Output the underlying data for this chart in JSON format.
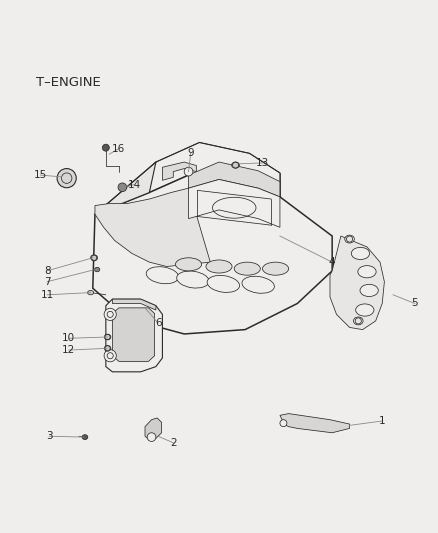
{
  "title": "T–ENGINE",
  "bg_color": "#f0eeec",
  "line_color": "#2a2a2a",
  "label_color": "#2a2a2a",
  "leader_color": "#888888",
  "fig_width": 4.38,
  "fig_height": 5.33,
  "dpi": 100,
  "labels_data": [
    [
      1,
      0.875,
      0.145,
      0.8,
      0.135
    ],
    [
      2,
      0.395,
      0.095,
      0.36,
      0.11
    ],
    [
      3,
      0.11,
      0.11,
      0.19,
      0.108
    ],
    [
      4,
      0.76,
      0.51,
      0.64,
      0.57
    ],
    [
      5,
      0.95,
      0.415,
      0.9,
      0.435
    ],
    [
      6,
      0.36,
      0.37,
      0.33,
      0.405
    ],
    [
      7,
      0.105,
      0.465,
      0.215,
      0.493
    ],
    [
      8,
      0.105,
      0.49,
      0.21,
      0.52
    ],
    [
      9,
      0.435,
      0.76,
      0.43,
      0.718
    ],
    [
      10,
      0.155,
      0.335,
      0.243,
      0.338
    ],
    [
      11,
      0.105,
      0.435,
      0.205,
      0.44
    ],
    [
      12,
      0.155,
      0.308,
      0.243,
      0.312
    ],
    [
      13,
      0.6,
      0.738,
      0.548,
      0.736
    ],
    [
      14,
      0.305,
      0.688,
      0.28,
      0.682
    ],
    [
      15,
      0.09,
      0.71,
      0.138,
      0.706
    ],
    [
      16,
      0.268,
      0.77,
      0.248,
      0.758
    ]
  ]
}
